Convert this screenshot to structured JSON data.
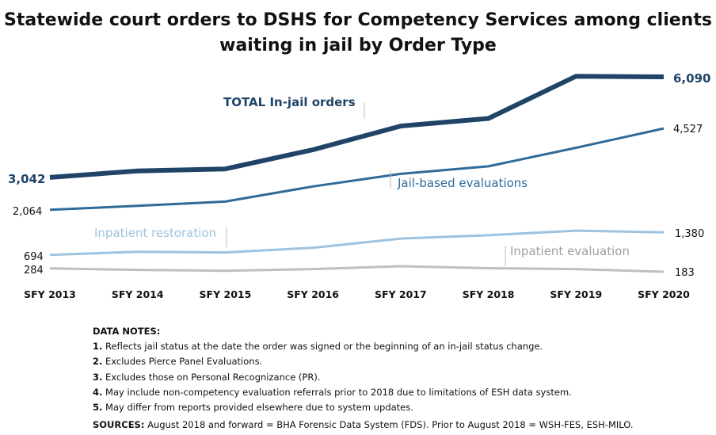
{
  "chart_data": {
    "type": "line",
    "title_line1": "Statewide court orders to DSHS for Competency Services among clients",
    "title_line2": "waiting in jail by Order Type",
    "categories": [
      "SFY 2013",
      "SFY 2014",
      "SFY 2015",
      "SFY 2016",
      "SFY 2017",
      "SFY 2018",
      "SFY 2019",
      "SFY 2020"
    ],
    "series": [
      {
        "name": "TOTAL In-jail orders",
        "values": [
          3042,
          3240,
          3300,
          3880,
          4600,
          4830,
          6110,
          6090
        ],
        "color": "#1f4468",
        "first_label": "3,042",
        "last_label": "6,090"
      },
      {
        "name": "Jail-based evaluations",
        "values": [
          2064,
          2180,
          2310,
          2770,
          3150,
          3380,
          3940,
          4527
        ],
        "color": "#2f6b9a",
        "first_label": "2,064",
        "last_label": "4,527"
      },
      {
        "name": "Inpatient restoration",
        "values": [
          694,
          790,
          770,
          910,
          1190,
          1290,
          1430,
          1380
        ],
        "color": "#9dc3e0",
        "first_label": "694",
        "last_label": "1,380"
      },
      {
        "name": "Inpatient evaluation",
        "values": [
          284,
          240,
          215,
          265,
          350,
          290,
          265,
          183
        ],
        "color": "#bfbfbf",
        "first_label": "284",
        "last_label": "183"
      }
    ],
    "grid": false,
    "legend": "inline labels"
  },
  "notes": {
    "header": "DATA NOTES:",
    "items": [
      {
        "num": "1.",
        "text": " Reflects jail status at the date the order was signed or the beginning of an in-jail status change."
      },
      {
        "num": "2.",
        "text": " Excludes Pierce Panel Evaluations."
      },
      {
        "num": "3.",
        "text": " Excludes those on Personal Recognizance (PR)."
      },
      {
        "num": "4.",
        "text": " May include non-competency evaluation referrals prior to 2018 due to limitations of ESH data system."
      },
      {
        "num": "5.",
        "text": " May differ from reports provided elsewhere due to system updates."
      }
    ],
    "sources_label": "SOURCES:",
    "sources_text": " August 2018 and forward = BHA Forensic Data System (FDS). Prior to August 2018 = WSH-FES, ESH-MILO."
  }
}
